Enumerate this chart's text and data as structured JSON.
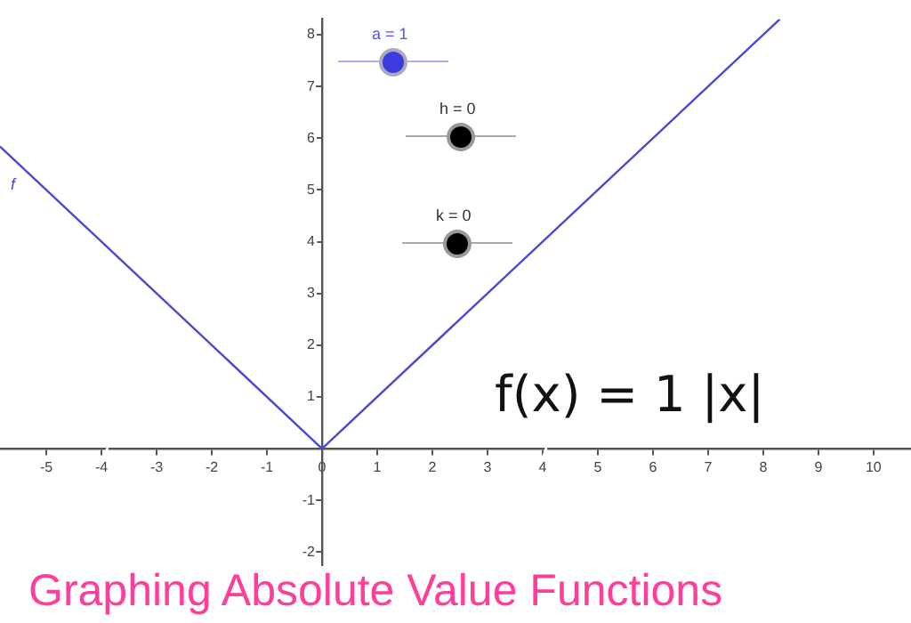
{
  "chart_data": {
    "type": "line",
    "title": "Graphing Absolute Value Functions",
    "x": [
      -5.84,
      0,
      8.3
    ],
    "series": [
      {
        "name": "f",
        "color": "#4a4ad0",
        "values": [
          5.84,
          0,
          8.3
        ]
      }
    ],
    "xlim": [
      -5.84,
      10.68
    ],
    "ylim": [
      -3.0,
      8.3
    ],
    "xticks": [
      -5,
      -4,
      -3,
      -2,
      -1,
      0,
      1,
      2,
      3,
      4,
      5,
      6,
      7,
      8,
      9,
      10
    ],
    "yticks": [
      -2,
      -1,
      1,
      2,
      3,
      4,
      5,
      6,
      7,
      8
    ],
    "annotations": [
      "a = 1",
      "h = 0",
      "k = 0",
      "f(x) = 1  |x|"
    ],
    "grid": false,
    "legend": false,
    "marker": "none",
    "line_style": "solid"
  }
}
